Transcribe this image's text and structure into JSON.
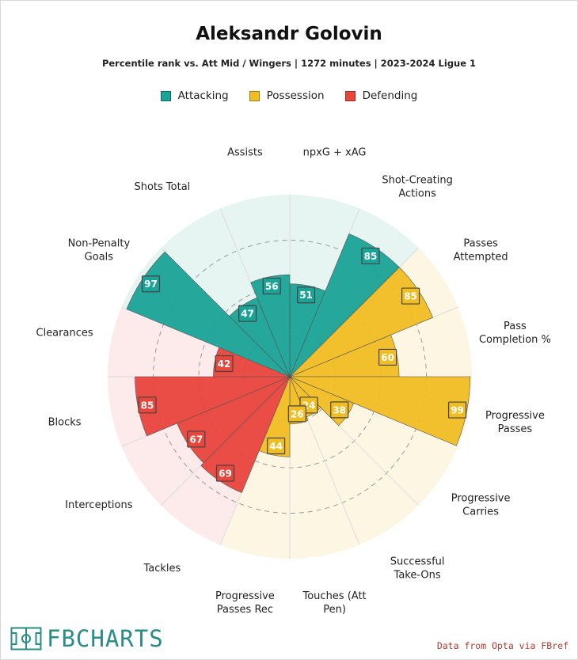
{
  "title": "Aleksandr Golovin",
  "subtitle": "Percentile rank vs. Att Mid / Wingers | 1272 minutes | 2023-2024 Ligue 1",
  "legend": [
    {
      "label": "Attacking",
      "color": "#1aa396"
    },
    {
      "label": "Possession",
      "color": "#f0bd22"
    },
    {
      "label": "Defending",
      "color": "#e8453c"
    }
  ],
  "credit": "Data from Opta via FBref",
  "logo_text": "FBCHARTS",
  "chart_data": {
    "type": "radar",
    "rmax": 100,
    "rings": [
      25,
      50,
      75,
      100
    ],
    "categories": [
      {
        "key": "Attacking",
        "color": "#1aa396",
        "light": "#e6f4f2"
      },
      {
        "key": "Possession",
        "color": "#f0bd22",
        "light": "#fcf6e3"
      },
      {
        "key": "Defending",
        "color": "#e8453c",
        "light": "#fcebea"
      }
    ],
    "series": [
      {
        "label": "npxG + xAG",
        "value": 51,
        "category": "Attacking"
      },
      {
        "label": "Shot-Creating\nActions",
        "value": 85,
        "category": "Attacking"
      },
      {
        "label": "Passes\nAttempted",
        "value": 85,
        "category": "Possession"
      },
      {
        "label": "Pass\nCompletion %",
        "value": 60,
        "category": "Possession"
      },
      {
        "label": "Progressive\nPasses",
        "value": 99,
        "category": "Possession"
      },
      {
        "label": "Progressive\nCarries",
        "value": 38,
        "category": "Possession"
      },
      {
        "label": "Successful\nTake-Ons",
        "value": 24,
        "category": "Possession"
      },
      {
        "label": "Touches (Att\nPen)",
        "value": 26,
        "category": "Possession"
      },
      {
        "label": "Progressive\nPasses Rec",
        "value": 44,
        "category": "Possession"
      },
      {
        "label": "Tackles",
        "value": 69,
        "category": "Defending"
      },
      {
        "label": "Interceptions",
        "value": 67,
        "category": "Defending"
      },
      {
        "label": "Blocks",
        "value": 85,
        "category": "Defending"
      },
      {
        "label": "Clearances",
        "value": 42,
        "category": "Defending"
      },
      {
        "label": "Non-Penalty\nGoals",
        "value": 97,
        "category": "Attacking"
      },
      {
        "label": "Shots Total",
        "value": 47,
        "category": "Attacking"
      },
      {
        "label": "Assists",
        "value": 56,
        "category": "Attacking"
      }
    ]
  }
}
